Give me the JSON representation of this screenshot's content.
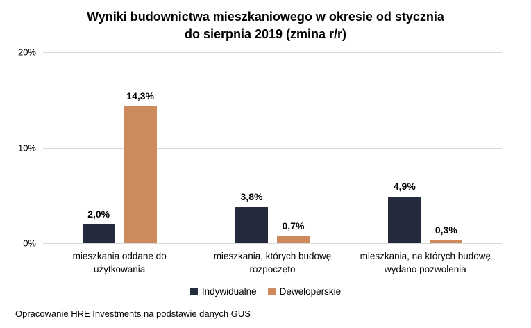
{
  "header": {
    "line1": "Wyniki budownictwa mieszkaniowego w okresie od stycznia",
    "line2": "do sierpnia 2019 (zmina r/r)"
  },
  "footer": {
    "text": "Opracowanie HRE Investments na podstawie danych GUS"
  },
  "colors": {
    "individual": "#222A3B",
    "developer": "#CD8A5C",
    "gridline": "#D9D9D9",
    "text": "#000000",
    "background": "#FFFFFF"
  },
  "chart_data": {
    "type": "bar",
    "title": "Wyniki budownictwa mieszkaniowego w okresie od stycznia do sierpnia 2019 (zmina r/r)",
    "categories": [
      "mieszkania oddane do użytkowania",
      "mieszkania, których budowę rozpoczęto",
      "mieszkania, na których budowę wydano pozwolenia"
    ],
    "category_lines": [
      [
        "mieszkania oddane do",
        "użytkowania"
      ],
      [
        "mieszkania, których budowę",
        "rozpoczęto"
      ],
      [
        "mieszkania, na których budowę",
        "wydano pozwolenia"
      ]
    ],
    "series": [
      {
        "name": "Indywidualne",
        "color": "#222A3B",
        "values": [
          2.0,
          3.8,
          4.9
        ],
        "labels": [
          "2,0%",
          "3,8%",
          "4,9%"
        ]
      },
      {
        "name": "Deweloperskie",
        "color": "#CD8A5C",
        "values": [
          14.3,
          0.7,
          0.3
        ],
        "labels": [
          "14,3%",
          "0,7%",
          "0,3%"
        ]
      }
    ],
    "ylim": [
      0,
      20
    ],
    "yticks": [
      {
        "value": 0,
        "label": "0%"
      },
      {
        "value": 10,
        "label": "10%"
      },
      {
        "value": 20,
        "label": "20%"
      }
    ],
    "grid": true,
    "legend_position": "bottom"
  }
}
